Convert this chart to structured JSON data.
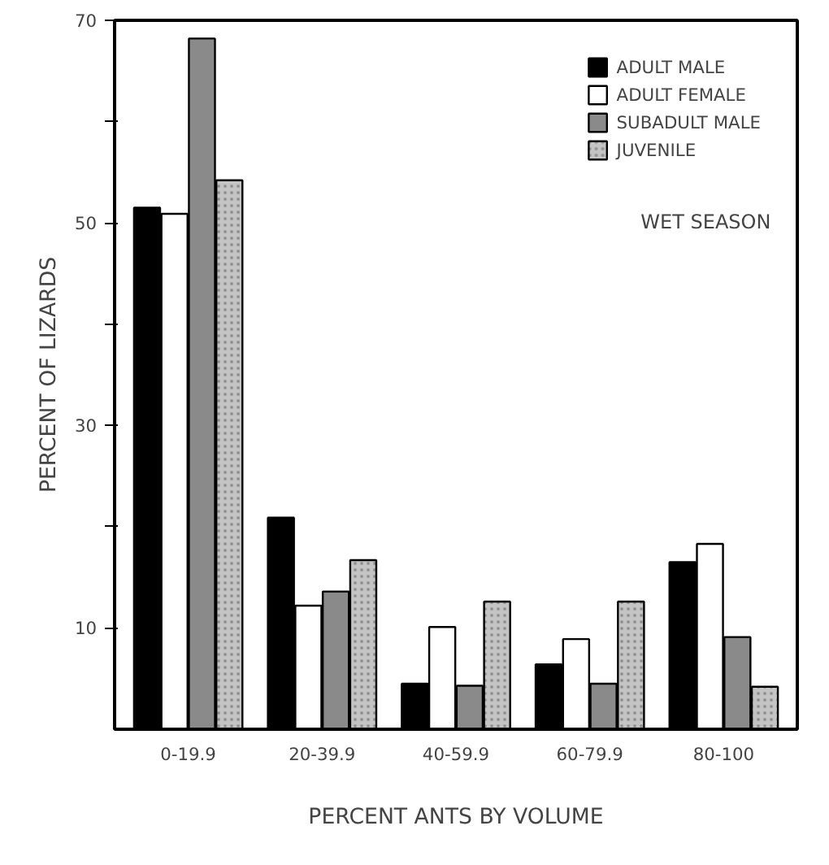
{
  "chart_data": {
    "type": "bar",
    "xlabel": "PERCENT ANTS BY VOLUME",
    "ylabel": "PERCENT OF LIZARDS",
    "categories": [
      "0-19.9",
      "20-39.9",
      "40-59.9",
      "60-79.9",
      "80-100"
    ],
    "series": [
      {
        "name": "ADULT MALE",
        "color": "#000000",
        "values": [
          51.5,
          20.9,
          4.5,
          6.4,
          16.5
        ]
      },
      {
        "name": "ADULT FEMALE",
        "color": "#ffffff",
        "values": [
          50.9,
          12.2,
          10.1,
          8.9,
          18.3
        ]
      },
      {
        "name": "SUBADULT MALE",
        "color": "#8a8a8a",
        "values": [
          68.2,
          13.6,
          4.3,
          4.5,
          9.1
        ]
      },
      {
        "name": "JUVENILE",
        "color": "#c4c4c4",
        "values": [
          54.2,
          16.7,
          12.6,
          12.6,
          4.2
        ]
      }
    ],
    "ylim": [
      0,
      70
    ],
    "yticks": [
      10,
      {
        "value": 20,
        "label": null
      },
      30,
      {
        "value": 40,
        "label": null
      },
      50,
      {
        "value": 60,
        "label": null
      },
      70
    ],
    "annotations": [
      "WET SEASON"
    ],
    "legend": "top right",
    "grid": false
  }
}
